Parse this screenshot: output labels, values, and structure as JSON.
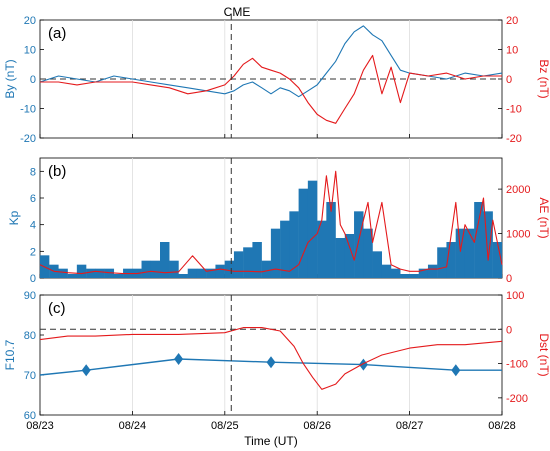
{
  "chart_data": [
    {
      "panel_label": "(a)",
      "type": "line",
      "annotation": "CME",
      "event_x": 2.07,
      "x_ticks": [
        "08/23",
        "08/24",
        "08/25",
        "08/26",
        "08/27",
        "08/28"
      ],
      "xlim": [
        0,
        5
      ],
      "left_axis": {
        "label": "By (nT)",
        "ylim": [
          -20,
          20
        ],
        "ticks": [
          "-20",
          "-10",
          "0",
          "10",
          "20"
        ],
        "color": "#1f77b4"
      },
      "right_axis": {
        "label": "Bz (nT)",
        "ylim": [
          -20,
          20
        ],
        "ticks": [
          "-20",
          "-10",
          "0",
          "10",
          "20"
        ],
        "color": "#e41a1c"
      },
      "reference_line_y": 0,
      "series": [
        {
          "axis": "left",
          "x": [
            0,
            0.2,
            0.4,
            0.6,
            0.8,
            1.0,
            1.2,
            1.4,
            1.6,
            1.8,
            2.0,
            2.1,
            2.2,
            2.3,
            2.4,
            2.5,
            2.6,
            2.7,
            2.8,
            2.9,
            3.0,
            3.1,
            3.2,
            3.3,
            3.4,
            3.5,
            3.6,
            3.7,
            3.8,
            3.9,
            4.0,
            4.2,
            4.4,
            4.6,
            4.8,
            5.0
          ],
          "y": [
            -1,
            1,
            0,
            -1,
            1,
            0,
            -1,
            -2,
            -3,
            -4,
            -5,
            -4,
            -2,
            -1,
            -3,
            -5,
            -3,
            -4,
            -6,
            -4,
            -2,
            2,
            6,
            12,
            16,
            18,
            15,
            13,
            8,
            3,
            2,
            1,
            0,
            2,
            1,
            2
          ]
        },
        {
          "axis": "right",
          "x": [
            0,
            0.2,
            0.4,
            0.6,
            0.8,
            1.0,
            1.2,
            1.4,
            1.6,
            1.8,
            2.0,
            2.1,
            2.2,
            2.3,
            2.4,
            2.5,
            2.6,
            2.7,
            2.8,
            2.9,
            3.0,
            3.1,
            3.2,
            3.3,
            3.4,
            3.5,
            3.6,
            3.7,
            3.8,
            3.9,
            4.0,
            4.2,
            4.4,
            4.6,
            4.8,
            5.0
          ],
          "y": [
            -1,
            -1,
            -2,
            -1,
            -1,
            -1,
            -2,
            -3,
            -5,
            -4,
            -2,
            1,
            5,
            7,
            4,
            3,
            2,
            0,
            -3,
            -8,
            -12,
            -14,
            -15,
            -10,
            -5,
            3,
            8,
            -5,
            4,
            -8,
            2,
            1,
            2,
            0,
            1,
            1
          ]
        }
      ]
    },
    {
      "panel_label": "(b)",
      "type": "bar",
      "xlim": [
        0,
        5
      ],
      "x_ticks": [
        "08/23",
        "08/24",
        "08/25",
        "08/26",
        "08/27",
        "08/28"
      ],
      "left_axis": {
        "label": "Kp",
        "ylim": [
          0,
          9
        ],
        "ticks": [
          "0",
          "2",
          "4",
          "6",
          "8"
        ],
        "color": "#1f77b4"
      },
      "right_axis": {
        "label": "AE (nT)",
        "ylim": [
          0,
          2700
        ],
        "ticks": [
          "0",
          "1000",
          "2000"
        ],
        "color": "#e41a1c"
      },
      "bar_width": 0.125,
      "bars": {
        "axis": "left",
        "values": [
          1.7,
          1.0,
          0.7,
          0.3,
          1.0,
          0.7,
          0.7,
          0.7,
          0.3,
          0.7,
          0.7,
          1.3,
          1.3,
          2.7,
          1.3,
          0.3,
          0.7,
          0.7,
          0.7,
          1.0,
          1.3,
          2.0,
          2.3,
          2.7,
          1.3,
          3.7,
          4.3,
          5.0,
          6.7,
          7.3,
          4.3,
          5.7,
          3.0,
          3.3,
          5.0,
          3.7,
          2.0,
          1.0,
          0.7,
          0.3,
          0.3,
          0.7,
          1.0,
          2.3,
          2.7,
          3.7,
          3.7,
          5.7,
          5.0,
          2.7
        ]
      },
      "series": [
        {
          "axis": "right",
          "x": [
            0,
            0.15,
            0.3,
            0.45,
            0.6,
            0.75,
            0.9,
            1.05,
            1.2,
            1.35,
            1.5,
            1.65,
            1.8,
            1.95,
            2.1,
            2.25,
            2.4,
            2.55,
            2.7,
            2.8,
            2.9,
            3.0,
            3.05,
            3.1,
            3.15,
            3.2,
            3.25,
            3.3,
            3.4,
            3.5,
            3.55,
            3.6,
            3.7,
            3.8,
            3.9,
            4.0,
            4.1,
            4.2,
            4.3,
            4.4,
            4.5,
            4.55,
            4.6,
            4.7,
            4.8,
            4.85,
            4.9,
            5.0
          ],
          "y": [
            300,
            150,
            120,
            100,
            150,
            120,
            100,
            100,
            150,
            120,
            140,
            500,
            150,
            200,
            150,
            150,
            140,
            200,
            150,
            300,
            800,
            1000,
            1300,
            2300,
            1500,
            2400,
            1200,
            1000,
            400,
            1300,
            1700,
            800,
            1700,
            300,
            200,
            150,
            150,
            200,
            200,
            250,
            1700,
            600,
            1200,
            800,
            1800,
            400,
            1300,
            300
          ]
        }
      ]
    },
    {
      "panel_label": "(c)",
      "type": "line",
      "xlim": [
        0,
        5
      ],
      "x_ticks": [
        "08/23",
        "08/24",
        "08/25",
        "08/26",
        "08/27",
        "08/28"
      ],
      "xlabel": "Time (UT)",
      "left_axis": {
        "label": "F10.7",
        "ylim": [
          60,
          90
        ],
        "ticks": [
          "60",
          "70",
          "80",
          "90"
        ],
        "color": "#1f77b4"
      },
      "right_axis": {
        "label": "Dst (nT)",
        "ylim": [
          -250,
          100
        ],
        "ticks": [
          "-200",
          "-100",
          "0",
          "100"
        ],
        "color": "#e41a1c"
      },
      "reference_line_y": 0,
      "series": [
        {
          "axis": "left",
          "marker": "diamond",
          "x": [
            0,
            0.5,
            1.5,
            2.5,
            3.5,
            4.5,
            5.0
          ],
          "y": [
            70,
            71.2,
            74.0,
            73.2,
            72.6,
            71.2,
            71.2
          ],
          "marker_indices": [
            1,
            2,
            3,
            4,
            5
          ]
        },
        {
          "axis": "right",
          "x": [
            0,
            0.3,
            0.6,
            1.0,
            1.5,
            2.0,
            2.2,
            2.4,
            2.6,
            2.75,
            2.85,
            2.95,
            3.05,
            3.1,
            3.2,
            3.3,
            3.5,
            3.7,
            4.0,
            4.3,
            4.6,
            5.0
          ],
          "y": [
            -30,
            -20,
            -20,
            -15,
            -15,
            -10,
            5,
            5,
            -5,
            -50,
            -100,
            -140,
            -175,
            -170,
            -160,
            -130,
            -100,
            -75,
            -55,
            -45,
            -45,
            -35
          ]
        }
      ]
    }
  ]
}
